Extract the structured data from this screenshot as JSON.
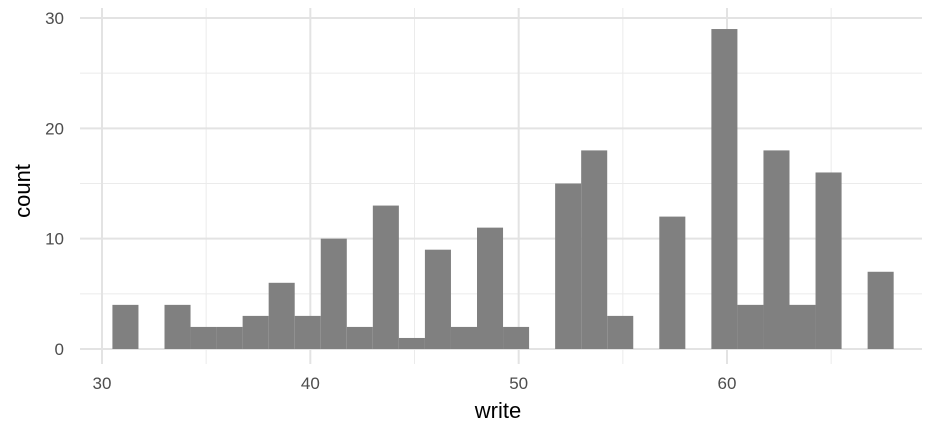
{
  "chart_data": {
    "type": "bar",
    "subtype": "histogram",
    "xlabel": "write",
    "ylabel": "count",
    "xlim": [
      29.4,
      69.2
    ],
    "ylim": [
      0,
      30
    ],
    "x_ticks": [
      30,
      40,
      50,
      60
    ],
    "y_ticks": [
      0,
      10,
      20,
      30
    ],
    "bin_width": 1.25,
    "bar_color": "#808080",
    "grid": true,
    "bins": [
      {
        "start": 30.5,
        "end": 31.75,
        "count": 4
      },
      {
        "start": 33.0,
        "end": 34.25,
        "count": 4
      },
      {
        "start": 34.25,
        "end": 35.5,
        "count": 2
      },
      {
        "start": 35.5,
        "end": 36.75,
        "count": 2
      },
      {
        "start": 36.75,
        "end": 38.0,
        "count": 3
      },
      {
        "start": 38.0,
        "end": 39.25,
        "count": 6
      },
      {
        "start": 39.25,
        "end": 40.5,
        "count": 3
      },
      {
        "start": 40.5,
        "end": 41.75,
        "count": 10
      },
      {
        "start": 41.75,
        "end": 43.0,
        "count": 2
      },
      {
        "start": 43.0,
        "end": 44.25,
        "count": 13
      },
      {
        "start": 44.25,
        "end": 45.5,
        "count": 1
      },
      {
        "start": 45.5,
        "end": 46.75,
        "count": 9
      },
      {
        "start": 46.75,
        "end": 48.0,
        "count": 2
      },
      {
        "start": 48.0,
        "end": 49.25,
        "count": 11
      },
      {
        "start": 49.25,
        "end": 50.5,
        "count": 2
      },
      {
        "start": 51.75,
        "end": 53.0,
        "count": 15
      },
      {
        "start": 53.0,
        "end": 54.25,
        "count": 18
      },
      {
        "start": 54.25,
        "end": 55.5,
        "count": 3
      },
      {
        "start": 56.75,
        "end": 58.0,
        "count": 12
      },
      {
        "start": 59.25,
        "end": 60.5,
        "count": 29
      },
      {
        "start": 60.5,
        "end": 61.75,
        "count": 4
      },
      {
        "start": 61.75,
        "end": 63.0,
        "count": 18
      },
      {
        "start": 63.0,
        "end": 64.25,
        "count": 4
      },
      {
        "start": 64.25,
        "end": 65.5,
        "count": 16
      },
      {
        "start": 66.75,
        "end": 68.0,
        "count": 7
      }
    ]
  }
}
